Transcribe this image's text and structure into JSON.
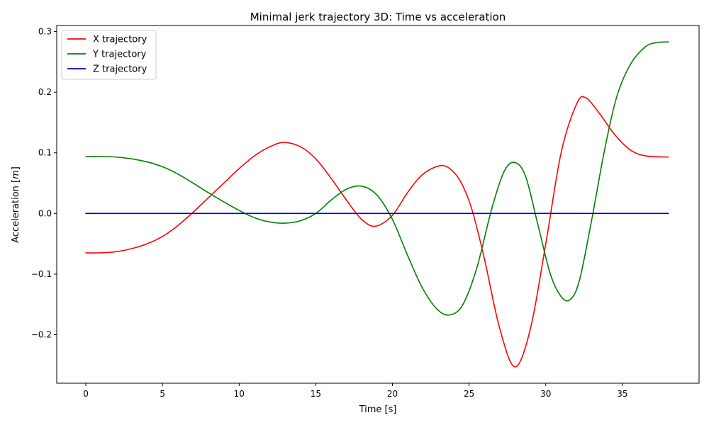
{
  "chart_data": {
    "type": "line",
    "title": "Minimal jerk trajectory 3D: Time vs acceleration",
    "xlabel": "Time [s]",
    "ylabel": "Acceleration [m]",
    "ylabel_parts": {
      "prefix": "Acceleration [",
      "unit": "m",
      "suffix": "]"
    },
    "xlim": [
      -1.9,
      40.0
    ],
    "ylim": [
      -0.28,
      0.31
    ],
    "xticks": [
      0,
      5,
      10,
      15,
      20,
      25,
      30,
      35
    ],
    "yticks": [
      -0.2,
      -0.1,
      0.0,
      0.1,
      0.2,
      0.3
    ],
    "ytick_labels": [
      "−0.2",
      "−0.1",
      "0.0",
      "0.1",
      "0.2",
      "0.3"
    ],
    "grid": false,
    "legend_position": "top-left",
    "series": [
      {
        "name": "X trajectory",
        "color": "#ff0000",
        "x": [
          0,
          1,
          2,
          3,
          4,
          5,
          6,
          7,
          8,
          9,
          10,
          11,
          12,
          12.9,
          14,
          15,
          16,
          17,
          18,
          18.9,
          20,
          21,
          22,
          23.2,
          24,
          24.6,
          25.2,
          26,
          27,
          28,
          29,
          30,
          31,
          32,
          32.6,
          33.5,
          34.5,
          35.5,
          36.5,
          38
        ],
        "y": [
          -0.065,
          -0.065,
          -0.063,
          -0.058,
          -0.05,
          -0.038,
          -0.02,
          0.002,
          0.026,
          0.05,
          0.074,
          0.095,
          0.11,
          0.117,
          0.11,
          0.09,
          0.058,
          0.022,
          -0.01,
          -0.021,
          -0.003,
          0.035,
          0.065,
          0.079,
          0.068,
          0.045,
          0.005,
          -0.075,
          -0.19,
          -0.253,
          -0.19,
          -0.05,
          0.1,
          0.18,
          0.191,
          0.165,
          0.13,
          0.105,
          0.095,
          0.093
        ]
      },
      {
        "name": "Y trajectory",
        "color": "#008000",
        "x": [
          0,
          1,
          2,
          3,
          4,
          5,
          6,
          7,
          8,
          9,
          10,
          11,
          12,
          13,
          14,
          15,
          16,
          17,
          18,
          19,
          20,
          21,
          22,
          23,
          23.8,
          24.6,
          25.5,
          26.5,
          27.3,
          28,
          28.7,
          29.5,
          30.3,
          31,
          31.6,
          32.2,
          33,
          33.8,
          34.6,
          35.5,
          36.5,
          37.3,
          38
        ],
        "y": [
          0.094,
          0.094,
          0.093,
          0.09,
          0.085,
          0.077,
          0.065,
          0.05,
          0.034,
          0.019,
          0.005,
          -0.007,
          -0.014,
          -0.016,
          -0.012,
          0.0,
          0.022,
          0.04,
          0.045,
          0.03,
          -0.01,
          -0.07,
          -0.125,
          -0.16,
          -0.167,
          -0.15,
          -0.09,
          0.01,
          0.07,
          0.084,
          0.06,
          -0.02,
          -0.1,
          -0.137,
          -0.142,
          -0.11,
          -0.01,
          0.1,
          0.19,
          0.245,
          0.275,
          0.282,
          0.283
        ]
      },
      {
        "name": "Z trajectory",
        "color": "#0000cd",
        "x": [
          0,
          38
        ],
        "y": [
          0.0,
          0.0
        ]
      }
    ]
  }
}
